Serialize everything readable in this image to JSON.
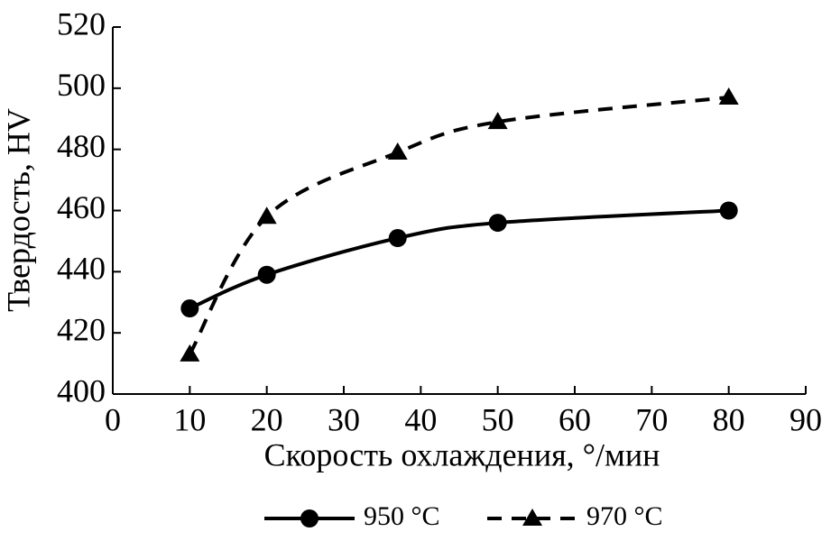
{
  "chart_data": {
    "type": "line",
    "x_label": "Скорость охлаждения, °/мин",
    "y_label": "Твердость, HV",
    "x": [
      10,
      20,
      37,
      50,
      80
    ],
    "series": [
      {
        "name": "950 °C",
        "color": "#000000",
        "line_style": "solid",
        "marker": "circle",
        "values": [
          428,
          439,
          451,
          456,
          460
        ]
      },
      {
        "name": "970 °C",
        "color": "#000000",
        "line_style": "dashed",
        "marker": "triangle",
        "values": [
          413,
          458,
          479,
          489,
          497
        ]
      }
    ],
    "xlim": [
      0,
      90
    ],
    "xticks": [
      0,
      10,
      20,
      30,
      40,
      50,
      60,
      70,
      80,
      90
    ],
    "ylim": [
      400,
      520
    ],
    "yticks": [
      400,
      420,
      440,
      460,
      480,
      500,
      520
    ],
    "grid": false,
    "legend": "bottom"
  }
}
